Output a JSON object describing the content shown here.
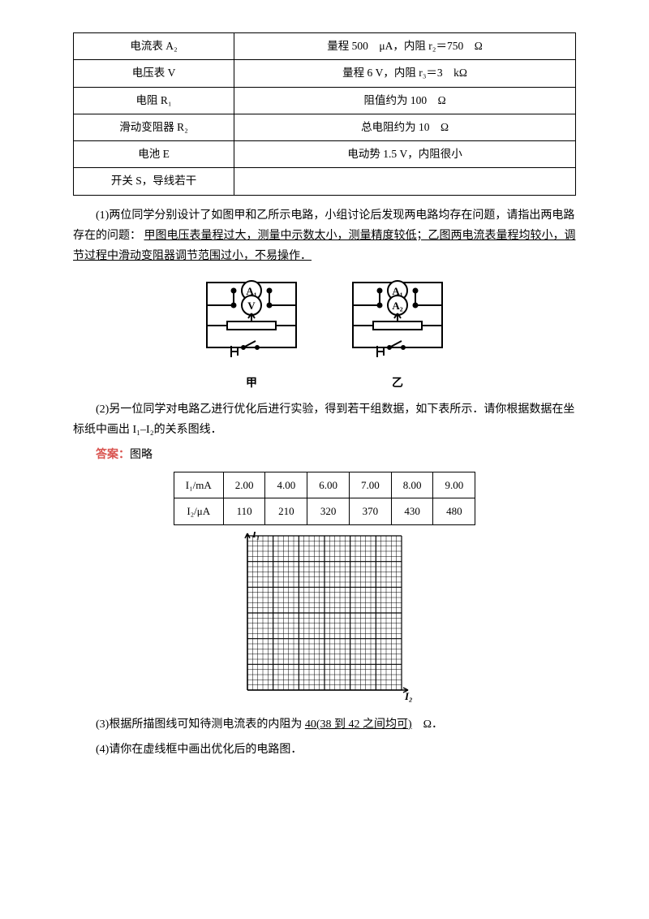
{
  "equip_table": {
    "rows": [
      {
        "left": "电流表 A₂",
        "right": "量程 500　μA，内阻 r₂＝750　Ω"
      },
      {
        "left": "电压表 V",
        "right": "量程 6 V，内阻 r₃＝3　kΩ"
      },
      {
        "left": "电阻 R₁",
        "right": "阻值约为 100　Ω"
      },
      {
        "left": "滑动变阻器 R₂",
        "right": "总电阻约为 10　Ω"
      },
      {
        "left": "电池 E",
        "right": "电动势 1.5 V，内阻很小"
      },
      {
        "left": "开关 S，导线若干",
        "right": ""
      }
    ]
  },
  "q1": {
    "text_a": "(1)两位同学分别设计了如图甲和乙所示电路，小组讨论后发现两电路均存在问题，请指出两电路存在的问题：",
    "underline": "甲图电压表量程过大，测量中示数太小，测量精度较低；乙图两电流表量程均较小，调节过程中滑动变阻器调节范围过小，不易操作．"
  },
  "circuit_labels": {
    "jia": "甲",
    "yi": "乙",
    "a1": "A₁",
    "v": "V",
    "a2": "A₂"
  },
  "q2": {
    "text": "(2)另一位同学对电路乙进行优化后进行实验，得到若干组数据，如下表所示．请你根据数据在坐标纸中画出 I₁–I₂的关系图线．",
    "answer_label": "答案：",
    "answer_text": "图略"
  },
  "data_table": {
    "header": [
      "I₁/mA",
      "2.00",
      "4.00",
      "6.00",
      "7.00",
      "8.00",
      "9.00"
    ],
    "row2": [
      "I₂/μA",
      "110",
      "210",
      "320",
      "370",
      "430",
      "480"
    ]
  },
  "grid": {
    "ylabel": "I₁",
    "xlabel": "I₂",
    "width": 190,
    "height": 190,
    "cells": 30,
    "line_color": "#000",
    "bg": "#fff"
  },
  "q3": {
    "text_a": "(3)根据所描图线可知待测电流表的内阻为 ",
    "underline": "40(38 到 42 之间均可)",
    "text_b": "　Ω．"
  },
  "q4": {
    "text": "(4)请你在虚线框中画出优化后的电路图．"
  }
}
